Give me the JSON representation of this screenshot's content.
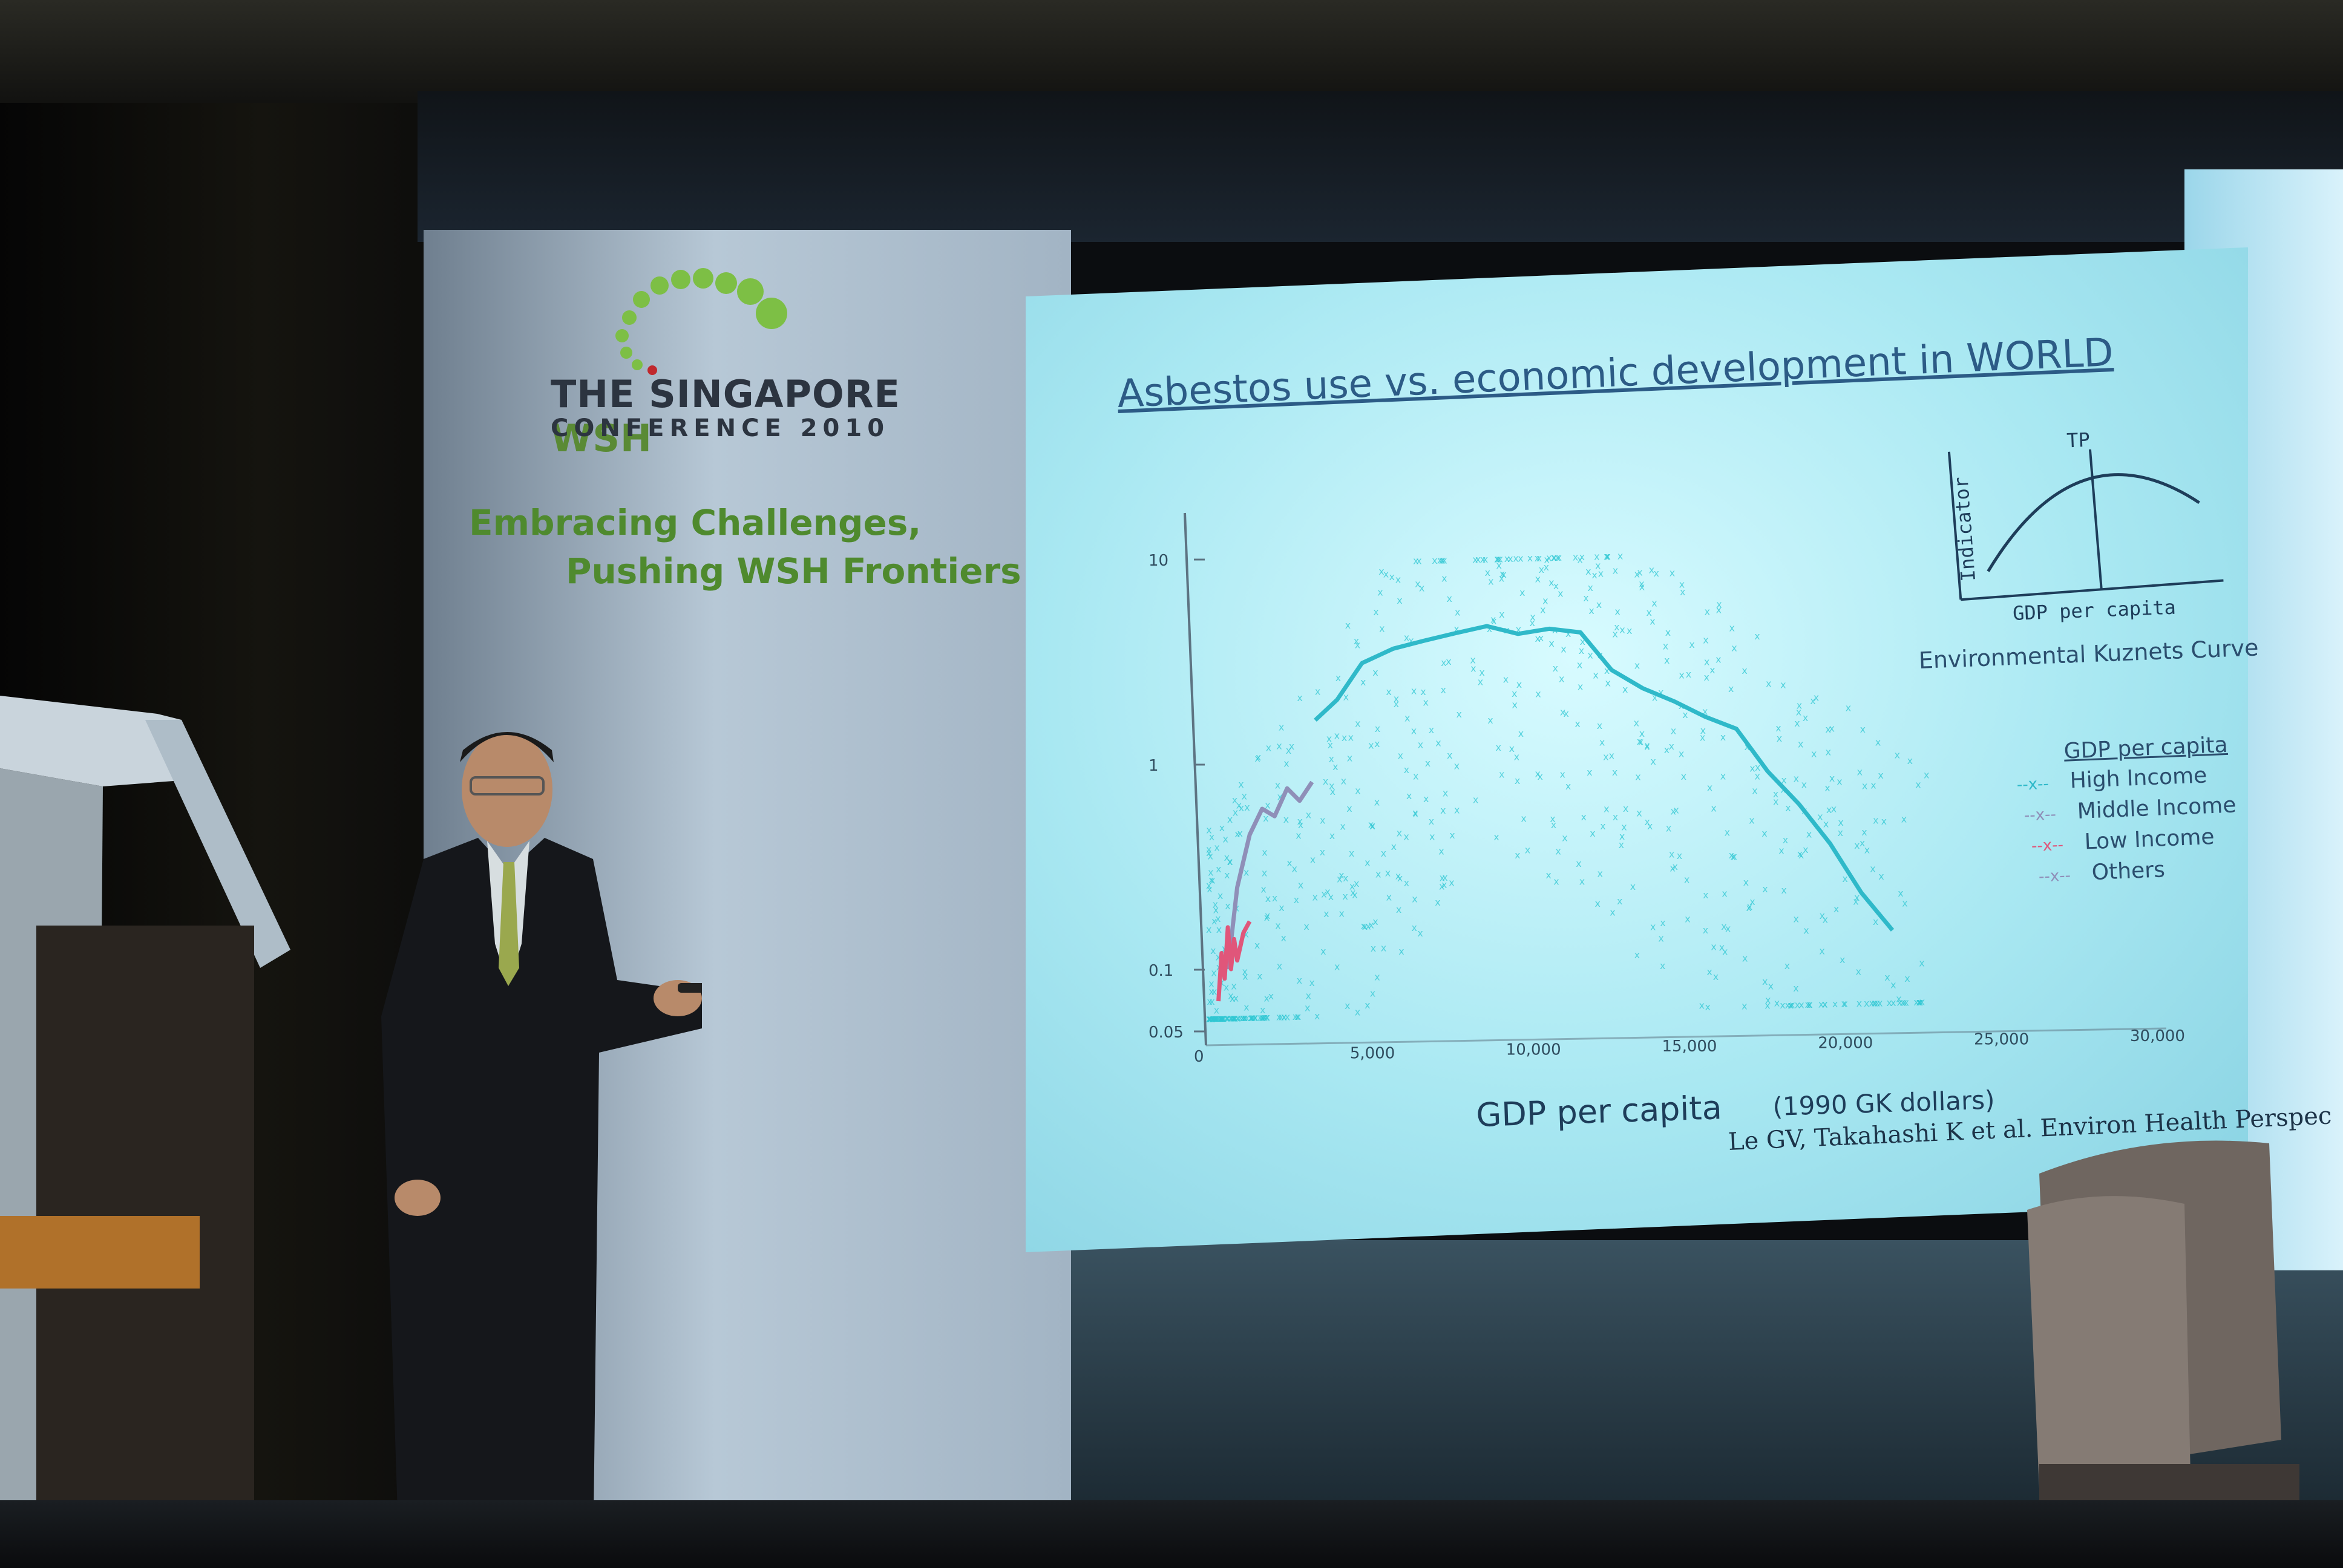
{
  "banner": {
    "title_main": "THE SINGAPORE ",
    "title_wsh": "WSH",
    "subtitle": "CONFERENCE 2010",
    "tagline_line1": "Embracing Challenges,",
    "tagline_line2": "Pushing WSH Frontiers"
  },
  "slide": {
    "title": "Asbestos use vs. economic development in WORLD",
    "citation": "Le GV, Takahashi K et al. Environ Health Perspec",
    "inset": {
      "peak_label": "TP",
      "y_label": "Indicator",
      "x_label": "GDP per capita",
      "caption": "Environmental Kuznets Curve"
    },
    "legend": {
      "title": "GDP per capita",
      "items": [
        {
          "marker": "--x--",
          "label": "High Income",
          "color": "#2fb9c9"
        },
        {
          "marker": "--x--",
          "label": "Middle Income",
          "color": "#8f8fb8"
        },
        {
          "marker": "--x--",
          "label": "Low Income",
          "color": "#e0567a"
        },
        {
          "marker": "--x--",
          "label": "Others",
          "color": "#8f8fb8"
        }
      ]
    }
  },
  "chart_data": {
    "type": "scatter",
    "title": "Asbestos use vs. economic development in WORLD",
    "xlabel": "GDP per capita",
    "xlabel_unit": "(1990 GK dollars)",
    "ylabel": "",
    "y_scale": "log",
    "xlim": [
      0,
      30000
    ],
    "ylim": [
      0.05,
      10
    ],
    "x_ticks": [
      "0",
      "5,000",
      "10,000",
      "15,000",
      "20,000",
      "25,000",
      "30,000"
    ],
    "y_ticks": [
      "10",
      "1",
      "0.1",
      "0.05"
    ],
    "series": [
      {
        "name": "High Income",
        "color": "#2fb9c9",
        "x": [
          3500,
          4200,
          5000,
          6000,
          7000,
          8000,
          9000,
          10000,
          11000,
          12000,
          13000,
          14000,
          15000,
          16000,
          17000,
          18000,
          19000,
          20000,
          21000,
          22000
        ],
        "y": [
          1.6,
          2.0,
          3.0,
          3.5,
          3.8,
          4.1,
          4.4,
          4.0,
          4.2,
          4.0,
          2.6,
          2.1,
          1.8,
          1.5,
          1.3,
          0.8,
          0.55,
          0.35,
          0.2,
          0.13
        ]
      },
      {
        "name": "Middle Income",
        "color": "#8f8fb8",
        "x": [
          700,
          1000,
          1400,
          1800,
          2200,
          2600,
          3000,
          3400
        ],
        "y": [
          0.1,
          0.25,
          0.45,
          0.6,
          0.55,
          0.75,
          0.65,
          0.8
        ]
      },
      {
        "name": "Low Income",
        "color": "#e0567a",
        "x": [
          400,
          500,
          600,
          700,
          800,
          900,
          1000,
          1200,
          1400
        ],
        "y": [
          0.07,
          0.12,
          0.09,
          0.16,
          0.1,
          0.14,
          0.11,
          0.15,
          0.17
        ]
      }
    ]
  }
}
